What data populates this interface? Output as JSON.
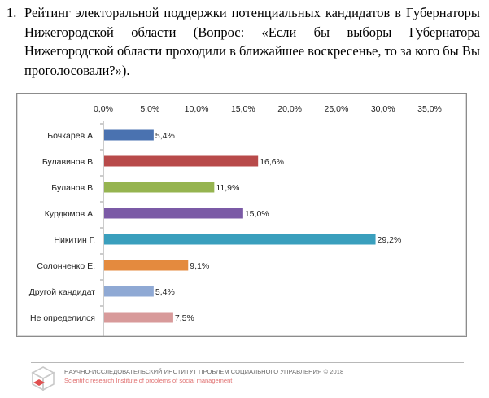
{
  "heading": {
    "number": "1.",
    "text": "Рейтинг электоральной поддержки потенциальных кандидатов в Губернаторы Нижегородской области (Вопрос: «Если бы выборы Губернатора Нижегородской области проходили в ближайшее воскресенье, то за кого бы Вы проголосовали?»)."
  },
  "chart_data": {
    "type": "bar",
    "orientation": "horizontal",
    "categories": [
      "Бочкарев А.",
      "Булавинов В.",
      "Буланов В.",
      "Курдюмов А.",
      "Никитин Г.",
      "Солонченко Е.",
      "Другой кандидат",
      "Не определился"
    ],
    "values": [
      5.4,
      16.6,
      11.9,
      15.0,
      29.2,
      9.1,
      5.4,
      7.5
    ],
    "value_labels": [
      "5,4%",
      "16,6%",
      "11,9%",
      "15,0%",
      "29,2%",
      "9,1%",
      "5,4%",
      "7,5%"
    ],
    "colors": [
      "#4a72b0",
      "#b84a4a",
      "#96b450",
      "#7b5aa6",
      "#3a9fbd",
      "#e48a3e",
      "#8fa9d4",
      "#d89a9a"
    ],
    "xlim": [
      0,
      35
    ],
    "ticks": [
      0,
      5,
      10,
      15,
      20,
      25,
      30,
      35
    ],
    "tick_labels": [
      "0,0%",
      "5,0%",
      "10,0%",
      "15,0%",
      "20,0%",
      "25,0%",
      "30,0%",
      "35,0%"
    ],
    "x_axis_position": "top",
    "grid": false,
    "legend": "none"
  },
  "footer": {
    "line1": "НАУЧНО-ИССЛЕДОВАТЕЛЬСКИЙ ИНСТИТУТ ПРОБЛЕМ СОЦИАЛЬНОГО УПРАВЛЕНИЯ  © 2018",
    "line2": "Scientific research Institute of problems of social management",
    "logo_icon": "cube-logo-icon"
  }
}
